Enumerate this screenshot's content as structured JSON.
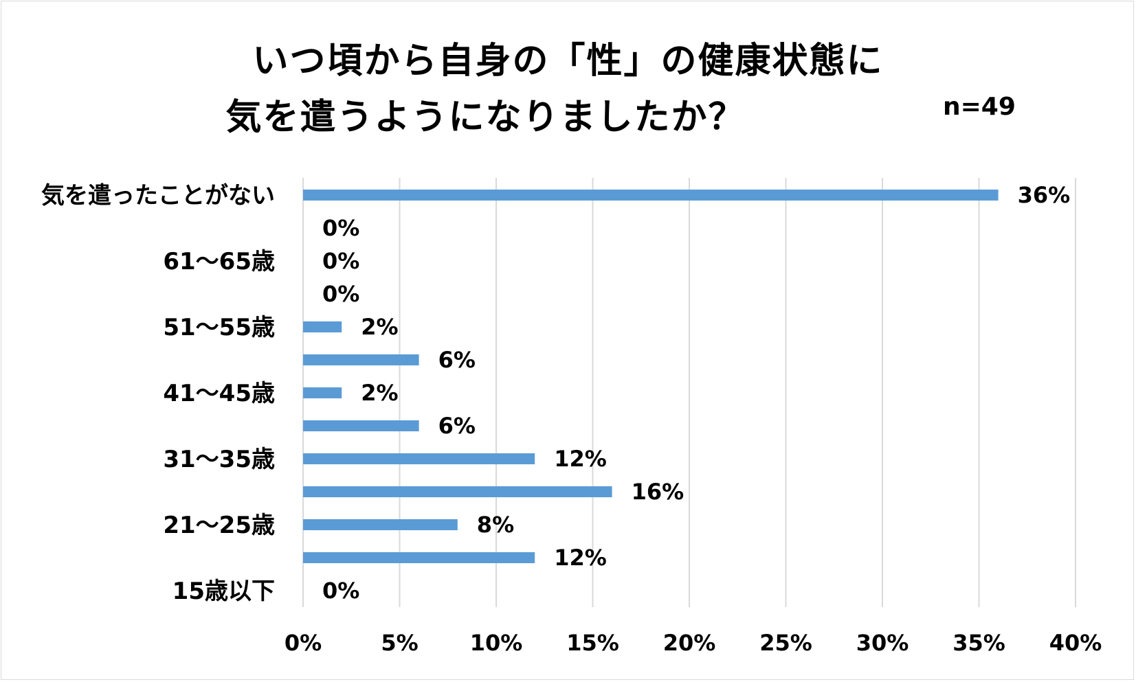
{
  "title": {
    "line1": "いつ頃から自身の「性」の健康状態に",
    "line2": "気を遣うようになりましたか？"
  },
  "sample_size": "n=49",
  "colors": {
    "bar": "#5b9bd5",
    "grid": "#d9d9d9",
    "text": "#000000"
  },
  "chart_data": {
    "type": "bar",
    "orientation": "horizontal",
    "categories": [
      "気を遣ったことがない",
      "",
      "61〜65歳",
      "",
      "51〜55歳",
      "",
      "41〜45歳",
      "",
      "31〜35歳",
      "",
      "21〜25歳",
      "",
      "15歳以下"
    ],
    "values": [
      36,
      0,
      0,
      0,
      2,
      6,
      2,
      6,
      12,
      16,
      8,
      12,
      0
    ],
    "data_labels": [
      "36%",
      "0%",
      "0%",
      "0%",
      "2%",
      "6%",
      "2%",
      "6%",
      "12%",
      "16%",
      "8%",
      "12%",
      "0%"
    ],
    "x_ticks": [
      0,
      5,
      10,
      15,
      20,
      25,
      30,
      35,
      40
    ],
    "x_tick_labels": [
      "0%",
      "5%",
      "10%",
      "15%",
      "20%",
      "25%",
      "30%",
      "35%",
      "40%"
    ],
    "xlim": [
      0,
      40
    ],
    "unit": "%",
    "grid": "vertical",
    "legend": "none"
  }
}
